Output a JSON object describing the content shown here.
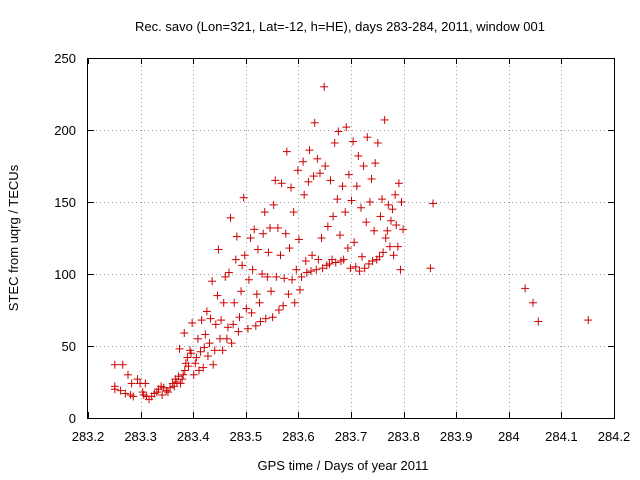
{
  "chart_data": {
    "type": "scatter",
    "title": "Rec. savo (Lon=321, Lat=-12, h=HE), days 283-284, 2011, window 001",
    "xlabel": "GPS time / Days of year 2011",
    "ylabel": "STEC from uqrg / TECUs",
    "xlim": [
      283.2,
      284.2
    ],
    "ylim": [
      0,
      250
    ],
    "xticks": [
      "283.2",
      "283.3",
      "283.4",
      "283.5",
      "283.6",
      "283.7",
      "283.8",
      "283.9",
      "284",
      "284.1",
      "284.2"
    ],
    "xtick_values": [
      283.2,
      283.3,
      283.4,
      283.5,
      283.6,
      283.7,
      283.8,
      283.9,
      284.0,
      284.1,
      284.2
    ],
    "yticks": [
      "0",
      "50",
      "100",
      "150",
      "200",
      "250"
    ],
    "ytick_values": [
      0,
      50,
      100,
      150,
      200,
      250
    ],
    "grid": true,
    "marker": "+",
    "color": "#cc0000",
    "series": [
      {
        "name": "STEC",
        "points": [
          [
            283.251,
            37
          ],
          [
            283.266,
            37
          ],
          [
            283.251,
            22
          ],
          [
            283.251,
            20
          ],
          [
            283.262,
            19
          ],
          [
            283.271,
            17
          ],
          [
            283.281,
            16
          ],
          [
            283.286,
            15
          ],
          [
            283.276,
            30
          ],
          [
            283.283,
            24
          ],
          [
            283.294,
            27
          ],
          [
            283.299,
            24
          ],
          [
            283.304,
            18
          ],
          [
            283.306,
            16
          ],
          [
            283.311,
            15
          ],
          [
            283.316,
            13
          ],
          [
            283.309,
            24
          ],
          [
            283.321,
            15
          ],
          [
            283.326,
            17
          ],
          [
            283.331,
            18
          ],
          [
            283.334,
            20
          ],
          [
            283.339,
            22
          ],
          [
            283.344,
            21
          ],
          [
            283.349,
            19
          ],
          [
            283.341,
            16
          ],
          [
            283.352,
            18
          ],
          [
            283.356,
            21
          ],
          [
            283.361,
            24
          ],
          [
            283.364,
            22
          ],
          [
            283.366,
            27
          ],
          [
            283.369,
            25
          ],
          [
            283.372,
            29
          ],
          [
            283.374,
            48
          ],
          [
            283.376,
            24
          ],
          [
            283.379,
            27
          ],
          [
            283.381,
            30
          ],
          [
            283.384,
            33
          ],
          [
            283.386,
            38
          ],
          [
            283.389,
            42
          ],
          [
            283.383,
            59
          ],
          [
            283.391,
            36
          ],
          [
            283.394,
            47
          ],
          [
            283.396,
            45
          ],
          [
            283.398,
            66
          ],
          [
            283.401,
            30
          ],
          [
            283.404,
            38
          ],
          [
            283.406,
            42
          ],
          [
            283.409,
            55
          ],
          [
            283.411,
            33
          ],
          [
            283.414,
            46
          ],
          [
            283.416,
            68
          ],
          [
            283.419,
            35
          ],
          [
            283.421,
            49
          ],
          [
            283.423,
            58
          ],
          [
            283.426,
            74
          ],
          [
            283.428,
            43
          ],
          [
            283.431,
            52
          ],
          [
            283.433,
            69
          ],
          [
            283.436,
            95
          ],
          [
            283.438,
            37
          ],
          [
            283.441,
            47
          ],
          [
            283.443,
            65
          ],
          [
            283.446,
            85
          ],
          [
            283.448,
            117
          ],
          [
            283.451,
            55
          ],
          [
            283.453,
            68
          ],
          [
            283.456,
            47
          ],
          [
            283.458,
            80
          ],
          [
            283.461,
            98
          ],
          [
            283.464,
            55
          ],
          [
            283.466,
            63
          ],
          [
            283.468,
            101
          ],
          [
            283.471,
            139
          ],
          [
            283.473,
            52
          ],
          [
            283.476,
            65
          ],
          [
            283.478,
            80
          ],
          [
            283.481,
            110
          ],
          [
            283.483,
            126
          ],
          [
            283.486,
            60
          ],
          [
            283.488,
            70
          ],
          [
            283.491,
            88
          ],
          [
            283.493,
            106
          ],
          [
            283.496,
            153
          ],
          [
            283.498,
            113
          ],
          [
            283.501,
            76
          ],
          [
            283.504,
            62
          ],
          [
            283.506,
            96
          ],
          [
            283.509,
            125
          ],
          [
            283.511,
            73
          ],
          [
            283.513,
            103
          ],
          [
            283.516,
            131
          ],
          [
            283.519,
            64
          ],
          [
            283.521,
            86
          ],
          [
            283.523,
            117
          ],
          [
            283.526,
            80
          ],
          [
            283.528,
            67
          ],
          [
            283.531,
            100
          ],
          [
            283.533,
            128
          ],
          [
            283.536,
            143
          ],
          [
            283.538,
            69
          ],
          [
            283.541,
            98
          ],
          [
            283.543,
            115
          ],
          [
            283.546,
            132
          ],
          [
            283.548,
            88
          ],
          [
            283.551,
            70
          ],
          [
            283.553,
            148
          ],
          [
            283.556,
            165
          ],
          [
            283.558,
            98
          ],
          [
            283.561,
            132
          ],
          [
            283.563,
            75
          ],
          [
            283.566,
            113
          ],
          [
            283.568,
            163
          ],
          [
            283.571,
            78
          ],
          [
            283.573,
            97
          ],
          [
            283.576,
            128
          ],
          [
            283.578,
            185
          ],
          [
            283.581,
            86
          ],
          [
            283.583,
            118
          ],
          [
            283.586,
            160
          ],
          [
            283.588,
            96
          ],
          [
            283.591,
            143
          ],
          [
            283.593,
            80
          ],
          [
            283.596,
            103
          ],
          [
            283.599,
            172
          ],
          [
            283.601,
            124
          ],
          [
            283.603,
            89
          ],
          [
            283.606,
            98
          ],
          [
            283.609,
            178
          ],
          [
            283.611,
            155
          ],
          [
            283.614,
            109
          ],
          [
            283.616,
            101
          ],
          [
            283.619,
            164
          ],
          [
            283.621,
            186
          ],
          [
            283.624,
            102
          ],
          [
            283.626,
            113
          ],
          [
            283.629,
            168
          ],
          [
            283.631,
            205
          ],
          [
            283.634,
            103
          ],
          [
            283.636,
            180
          ],
          [
            283.638,
            110
          ],
          [
            283.641,
            170
          ],
          [
            283.644,
            125
          ],
          [
            283.646,
            104
          ],
          [
            283.649,
            230
          ],
          [
            283.651,
            175
          ],
          [
            283.654,
            106
          ],
          [
            283.656,
            133
          ],
          [
            283.659,
            107
          ],
          [
            283.661,
            165
          ],
          [
            283.664,
            110
          ],
          [
            283.666,
            140
          ],
          [
            283.669,
            191
          ],
          [
            283.671,
            108
          ],
          [
            283.674,
            152
          ],
          [
            283.676,
            199
          ],
          [
            283.679,
            127
          ],
          [
            283.681,
            109
          ],
          [
            283.684,
            161
          ],
          [
            283.686,
            110
          ],
          [
            283.689,
            143
          ],
          [
            283.691,
            202
          ],
          [
            283.694,
            118
          ],
          [
            283.696,
            169
          ],
          [
            283.699,
            104
          ],
          [
            283.701,
            151
          ],
          [
            283.704,
            192
          ],
          [
            283.706,
            122
          ],
          [
            283.709,
            105
          ],
          [
            283.711,
            161
          ],
          [
            283.714,
            182
          ],
          [
            283.716,
            102
          ],
          [
            283.719,
            146
          ],
          [
            283.721,
            112
          ],
          [
            283.724,
            175
          ],
          [
            283.726,
            104
          ],
          [
            283.729,
            136
          ],
          [
            283.731,
            195
          ],
          [
            283.734,
            107
          ],
          [
            283.736,
            150
          ],
          [
            283.739,
            166
          ],
          [
            283.741,
            109
          ],
          [
            283.744,
            130
          ],
          [
            283.746,
            177
          ],
          [
            283.749,
            110
          ],
          [
            283.751,
            191
          ],
          [
            283.754,
            112
          ],
          [
            283.756,
            140
          ],
          [
            283.759,
            152
          ],
          [
            283.761,
            115
          ],
          [
            283.764,
            207
          ],
          [
            283.766,
            125
          ],
          [
            283.769,
            130
          ],
          [
            283.771,
            148
          ],
          [
            283.774,
            119
          ],
          [
            283.776,
            137
          ],
          [
            283.779,
            145
          ],
          [
            283.781,
            113
          ],
          [
            283.784,
            155
          ],
          [
            283.786,
            134
          ],
          [
            283.789,
            119
          ],
          [
            283.791,
            163
          ],
          [
            283.794,
            103
          ],
          [
            283.796,
            150
          ],
          [
            283.799,
            131
          ],
          [
            283.851,
            104
          ],
          [
            283.856,
            149
          ],
          [
            284.031,
            90
          ],
          [
            284.046,
            80
          ],
          [
            284.056,
            67
          ],
          [
            284.151,
            68
          ]
        ]
      }
    ]
  }
}
